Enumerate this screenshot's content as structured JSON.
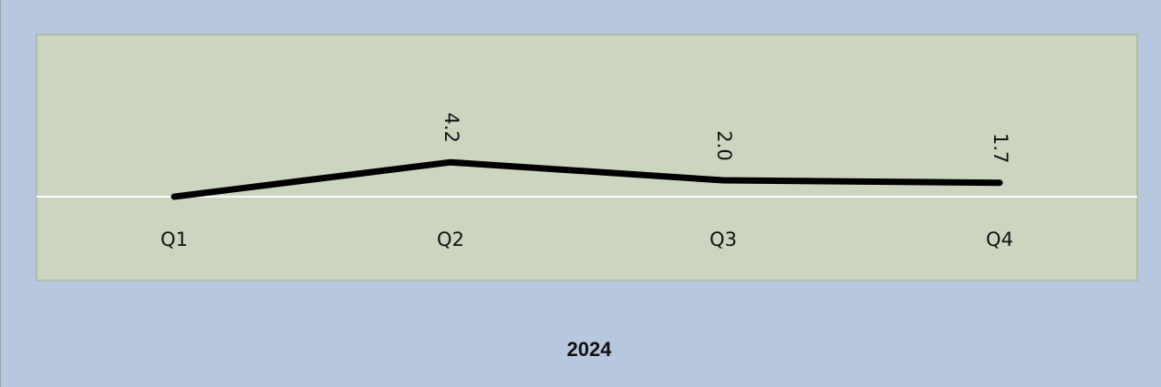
{
  "chart_data": {
    "type": "line",
    "categories": [
      "Q1",
      "Q2",
      "Q3",
      "Q4"
    ],
    "series": [
      {
        "values": [
          0.0,
          4.2,
          2.0,
          1.7
        ],
        "data_labels": [
          null,
          "4.2",
          "2.0",
          "1.7"
        ]
      }
    ],
    "xlabel": "2024",
    "ylabel": "",
    "ylim": [
      0,
      5
    ],
    "grid": false,
    "legend": "none",
    "colors": {
      "outer_background": "#b7c7dd",
      "plot_background": "#cbd5c0",
      "plot_border": "#a8b89a",
      "line": "#000000",
      "baseline": "#ffffff"
    }
  }
}
